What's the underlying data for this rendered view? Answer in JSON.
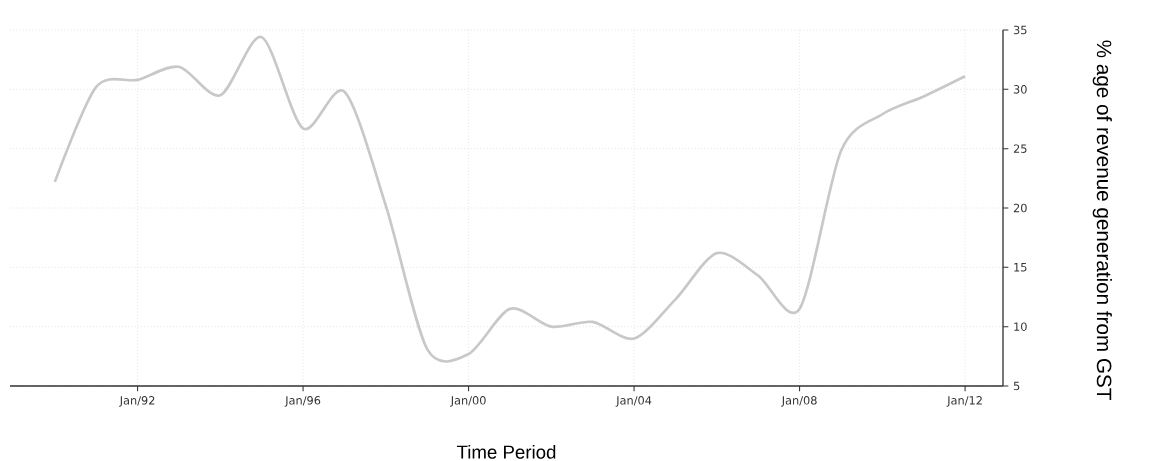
{
  "chart_data": {
    "type": "line",
    "xlabel": "Time Period",
    "ylabel": "% age of revenue generation from GST",
    "x": [
      "1990-01",
      "1991-01",
      "1992-01",
      "1993-01",
      "1994-01",
      "1995-01",
      "1996-01",
      "1997-01",
      "1998-01",
      "1999-01",
      "2000-01",
      "2001-01",
      "2002-01",
      "2003-01",
      "2004-01",
      "2005-01",
      "2006-01",
      "2007-01",
      "2008-01",
      "2009-01",
      "2010-01",
      "2011-01",
      "2012-01"
    ],
    "series": [
      {
        "color": "#c8c8c8",
        "values": [
          22.2,
          30.2,
          30.8,
          31.9,
          29.5,
          34.4,
          26.7,
          29.8,
          20.2,
          8.1,
          7.7,
          11.5,
          10.0,
          10.4,
          9.0,
          12.3,
          16.2,
          14.3,
          11.5,
          24.8,
          27.9,
          29.4,
          31.1
        ]
      }
    ],
    "xlim": [
      "1988-12",
      "2012-12"
    ],
    "xticks": [
      {
        "value": "1992-01",
        "label": "Jan/92"
      },
      {
        "value": "1996-01",
        "label": "Jan/96"
      },
      {
        "value": "2000-01",
        "label": "Jan/00"
      },
      {
        "value": "2004-01",
        "label": "Jan/04"
      },
      {
        "value": "2008-01",
        "label": "Jan/08"
      },
      {
        "value": "2012-01",
        "label": "Jan/12"
      }
    ],
    "ylim": [
      5,
      35
    ],
    "yticks": [
      5,
      10,
      15,
      20,
      25,
      30,
      35
    ],
    "grid": true,
    "legend": false,
    "marker": "none",
    "line_style": "solid"
  }
}
